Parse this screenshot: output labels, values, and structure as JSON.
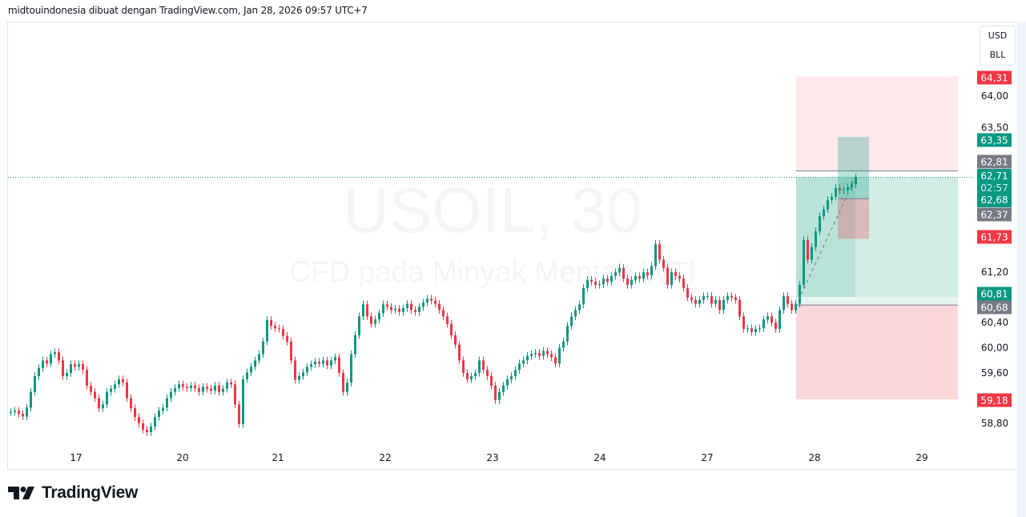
{
  "header": {
    "text": "midtouindonesia dibuat dengan TradingView.com, Jan 28, 2026 09:57 UTC+7"
  },
  "currency_box": {
    "currency": "USD",
    "unit": "BLL"
  },
  "watermark": {
    "symbol": "USOIL, 30",
    "description": "CFD pada Minyak Mentah WTI"
  },
  "logo": {
    "text": "TradingView"
  },
  "colors": {
    "up": "#089981",
    "down": "#f23645",
    "neutral_badge": "#787b86",
    "grid_text": "#131722"
  },
  "chart_data": {
    "type": "candlestick",
    "interval": "30",
    "ylim": [
      58.55,
      64.9
    ],
    "y_ticks": [
      "64,00",
      "63,50",
      "61,20",
      "60,40",
      "60,00",
      "59,60",
      "58,80"
    ],
    "y_tick_values": [
      64.0,
      63.5,
      61.2,
      60.4,
      60.0,
      59.6,
      58.8
    ],
    "x_labels": [
      "17",
      "20",
      "21",
      "22",
      "23",
      "24",
      "27",
      "28",
      "29"
    ],
    "closes": [
      58.98,
      59.0,
      58.95,
      58.91,
      59.05,
      59.3,
      59.55,
      59.68,
      59.8,
      59.75,
      59.9,
      59.93,
      59.8,
      59.55,
      59.6,
      59.74,
      59.7,
      59.74,
      59.65,
      59.4,
      59.3,
      59.2,
      59.04,
      59.1,
      59.3,
      59.35,
      59.42,
      59.5,
      59.45,
      59.2,
      59.04,
      58.9,
      58.8,
      58.7,
      58.66,
      58.75,
      58.9,
      59.0,
      59.05,
      59.2,
      59.3,
      59.36,
      59.42,
      59.38,
      59.36,
      59.4,
      59.36,
      59.3,
      59.38,
      59.35,
      59.32,
      59.4,
      59.3,
      59.35,
      59.45,
      59.42,
      59.1,
      58.79,
      59.5,
      59.61,
      59.7,
      59.8,
      59.9,
      60.1,
      60.44,
      60.35,
      60.31,
      60.3,
      60.19,
      60.1,
      59.8,
      59.49,
      59.55,
      59.61,
      59.7,
      59.74,
      59.78,
      59.75,
      59.8,
      59.72,
      59.8,
      59.85,
      59.6,
      59.3,
      59.45,
      59.9,
      60.2,
      60.5,
      60.69,
      60.5,
      60.38,
      60.45,
      60.55,
      60.69,
      60.65,
      60.6,
      60.62,
      60.57,
      60.63,
      60.7,
      60.6,
      60.57,
      60.65,
      60.72,
      60.78,
      60.75,
      60.7,
      60.6,
      60.5,
      60.38,
      60.2,
      60.05,
      59.8,
      59.6,
      59.5,
      59.55,
      59.6,
      59.8,
      59.65,
      59.55,
      59.4,
      59.17,
      59.3,
      59.4,
      59.5,
      59.55,
      59.65,
      59.75,
      59.8,
      59.87,
      59.9,
      59.92,
      59.87,
      59.95,
      59.9,
      59.85,
      59.75,
      60.0,
      60.1,
      60.35,
      60.5,
      60.6,
      60.69,
      60.95,
      61.08,
      61.05,
      61.0,
      61.01,
      61.1,
      61.05,
      61.14,
      61.2,
      61.27,
      61.1,
      61.0,
      61.08,
      61.14,
      61.1,
      61.2,
      61.15,
      61.3,
      61.65,
      61.4,
      61.27,
      61.0,
      61.2,
      61.14,
      61.1,
      60.95,
      60.8,
      60.76,
      60.7,
      60.76,
      60.82,
      60.82,
      60.7,
      60.76,
      60.6,
      60.76,
      60.82,
      60.8,
      60.76,
      60.5,
      60.3,
      60.31,
      60.25,
      60.3,
      60.31,
      60.45,
      60.5,
      60.4,
      60.3,
      60.6,
      60.82,
      60.7,
      60.6,
      60.7,
      61.0,
      61.71,
      61.4,
      61.6,
      61.85,
      62.09,
      62.2,
      62.35,
      62.4,
      62.54,
      62.5,
      62.51,
      62.55,
      62.6,
      62.71
    ],
    "last_price": 62.71,
    "countdown": "02:57",
    "price_badges": [
      {
        "label": "64,31",
        "value": 64.31,
        "kind": "down"
      },
      {
        "label": "63,35",
        "value": 63.35,
        "kind": "up"
      },
      {
        "label": "62,81",
        "value": 62.81,
        "kind": "neutral"
      },
      {
        "label": "62,68",
        "value": 62.68,
        "kind": "up"
      },
      {
        "label": "62,37",
        "value": 62.37,
        "kind": "neutral"
      },
      {
        "label": "61,73",
        "value": 61.73,
        "kind": "down"
      },
      {
        "label": "60,81",
        "value": 60.81,
        "kind": "up"
      },
      {
        "label": "60,68",
        "value": 60.68,
        "kind": "neutral"
      },
      {
        "label": "59,18",
        "value": 59.18,
        "kind": "down"
      }
    ],
    "last_badge": {
      "price": "62,71",
      "countdown": "02:57"
    },
    "position_large": {
      "stop_top": 64.31,
      "entry": 62.81,
      "target_band_top": 62.71,
      "entry_low": 60.68,
      "band_mid": 60.81,
      "stop_bottom": 59.18
    },
    "position_small": {
      "target": 63.35,
      "entry": 62.37,
      "stop": 61.73
    }
  }
}
